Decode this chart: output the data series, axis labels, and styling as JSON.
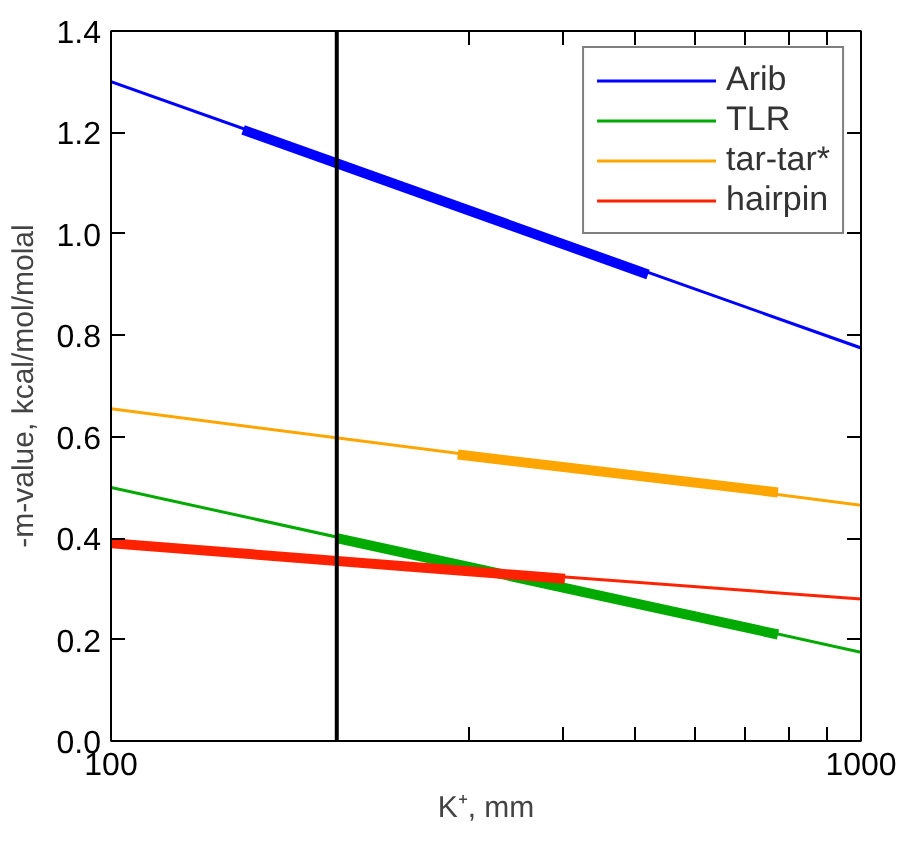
{
  "chart_data": {
    "type": "line",
    "xlabel": "K⁺, mm",
    "ylabel": "-m-value, kcal/mol/molal",
    "log": "x",
    "xlim": [
      100,
      1000
    ],
    "ylim": [
      0,
      1.4
    ],
    "xticks": [
      100,
      {
        "value": 200,
        "label": null
      },
      {
        "value": 300,
        "label": null
      },
      {
        "value": 400,
        "label": null
      },
      {
        "value": 500,
        "label": null
      },
      {
        "value": 600,
        "label": null
      },
      {
        "value": 700,
        "label": null
      },
      {
        "value": 800,
        "label": null
      },
      {
        "value": 900,
        "label": null
      },
      1000
    ],
    "yticks": [
      {
        "value": 0,
        "label": "0.0"
      },
      0.2,
      0.4,
      0.6,
      0.8,
      {
        "value": 1,
        "label": "1.0"
      },
      1.2,
      1.4
    ],
    "grid": false,
    "legend": "top right",
    "marker": "none",
    "line_style": "solid",
    "ref_lines": [
      {
        "axis": "x",
        "value": 200,
        "label": null,
        "color": "#000000"
      }
    ],
    "series": [
      {
        "name": "Arib",
        "color": "#0000ff",
        "x": [
          100,
          1000
        ],
        "values": [
          1.3,
          0.775
        ]
      },
      {
        "name": "TLR",
        "color": "#00aa00",
        "x": [
          100,
          1000
        ],
        "values": [
          0.5,
          0.175
        ]
      },
      {
        "name": "tar-tar*",
        "color": "#ffa500",
        "x": [
          100,
          1000
        ],
        "values": [
          0.655,
          0.465
        ]
      },
      {
        "name": "hairpin",
        "color": "#ff2200",
        "x": [
          100,
          1000
        ],
        "values": [
          0.39,
          0.28
        ]
      },
      {
        "color": "#0000ff",
        "x": [
          150,
          520
        ],
        "values": [
          1.205,
          0.92
        ]
      },
      {
        "color": "#00aa00",
        "x": [
          200,
          775
        ],
        "values": [
          0.4,
          0.21
        ]
      },
      {
        "color": "#ffa500",
        "x": [
          290,
          775
        ],
        "values": [
          0.565,
          0.49
        ]
      },
      {
        "color": "#ff2200",
        "x": [
          100,
          403
        ],
        "values": [
          0.39,
          0.32
        ]
      }
    ]
  }
}
